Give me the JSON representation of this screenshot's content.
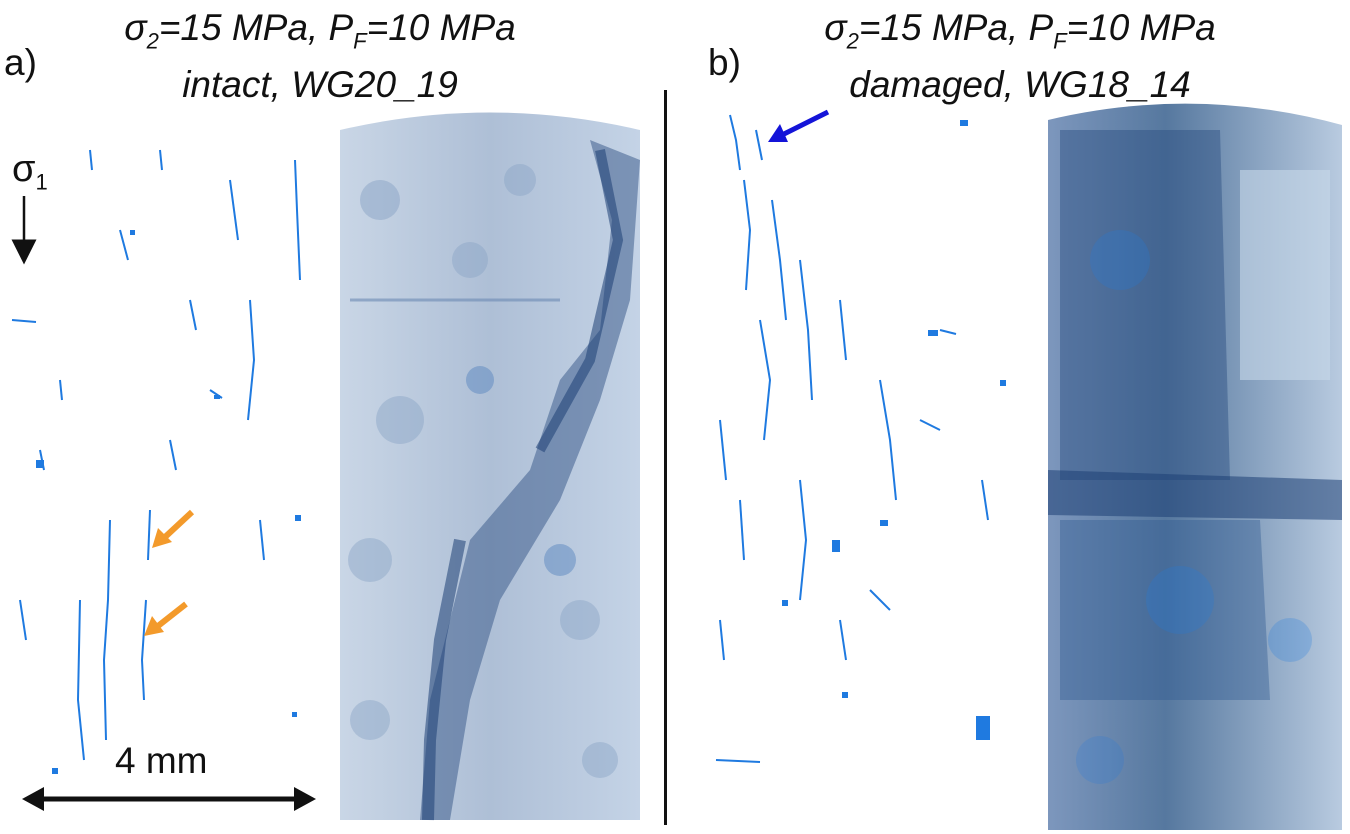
{
  "panel_a": {
    "label": "a)",
    "title_sigma": "σ",
    "title_sigma_sub": "2",
    "title_sigma_rest": "=15 MPa, P",
    "title_pf_sub": "F",
    "title_pf_rest": "=10 MPa",
    "title_line2": "intact, WG20_19",
    "axis_symbol": "σ",
    "axis_symbol_sub": "1",
    "scale_label": "4 mm"
  },
  "panel_b": {
    "label": "b)",
    "title_sigma": "σ",
    "title_sigma_sub": "2",
    "title_sigma_rest": "=15 MPa, P",
    "title_pf_sub": "F",
    "title_pf_rest": "=10 MPa",
    "title_line2": "damaged, WG18_14"
  },
  "colors": {
    "crack_blue": "#1f7ae0",
    "dark_blue": "#1d3f74",
    "mid_blue": "#5b87c0",
    "orange_arrow": "#f39a2b",
    "blue_arrow": "#1414d8"
  }
}
